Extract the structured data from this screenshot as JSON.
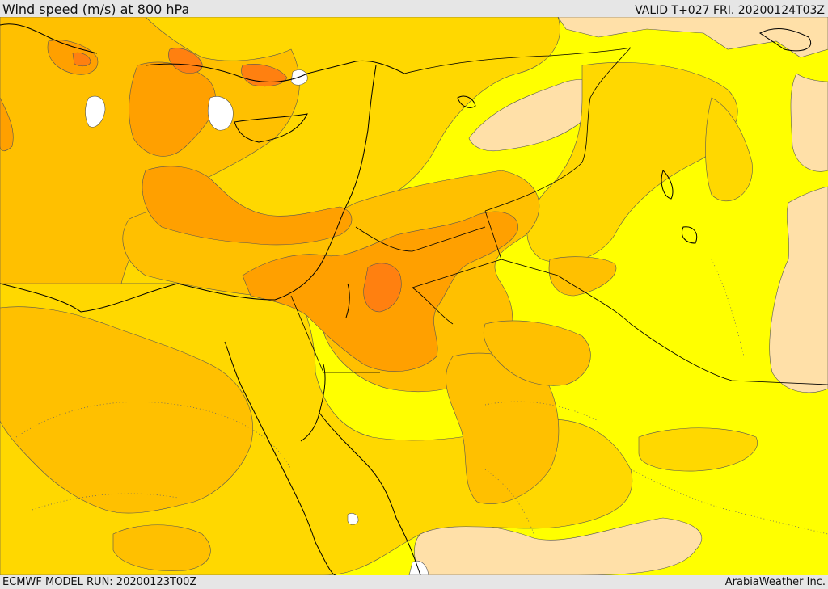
{
  "header": {
    "title": "Wind speed (m/s) at 800 hPa",
    "valid": "VALID T+027 FRI. 20200124T03Z"
  },
  "footer": {
    "model_run": "ECMWF MODEL RUN: 20200123T00Z",
    "credit": "ArabiaWeather Inc."
  },
  "map": {
    "variable": "wind speed",
    "units": "m/s",
    "level_hpa": 800,
    "palette": {
      "white": "#ffffff",
      "pale": "#ffe0a8",
      "yellow": "#ffff00",
      "gold": "#ffd800",
      "amber": "#ffc000",
      "orange": "#ffa000",
      "deep_orange": "#ff8010",
      "contour": "#555555",
      "coast": "#000000"
    }
  }
}
